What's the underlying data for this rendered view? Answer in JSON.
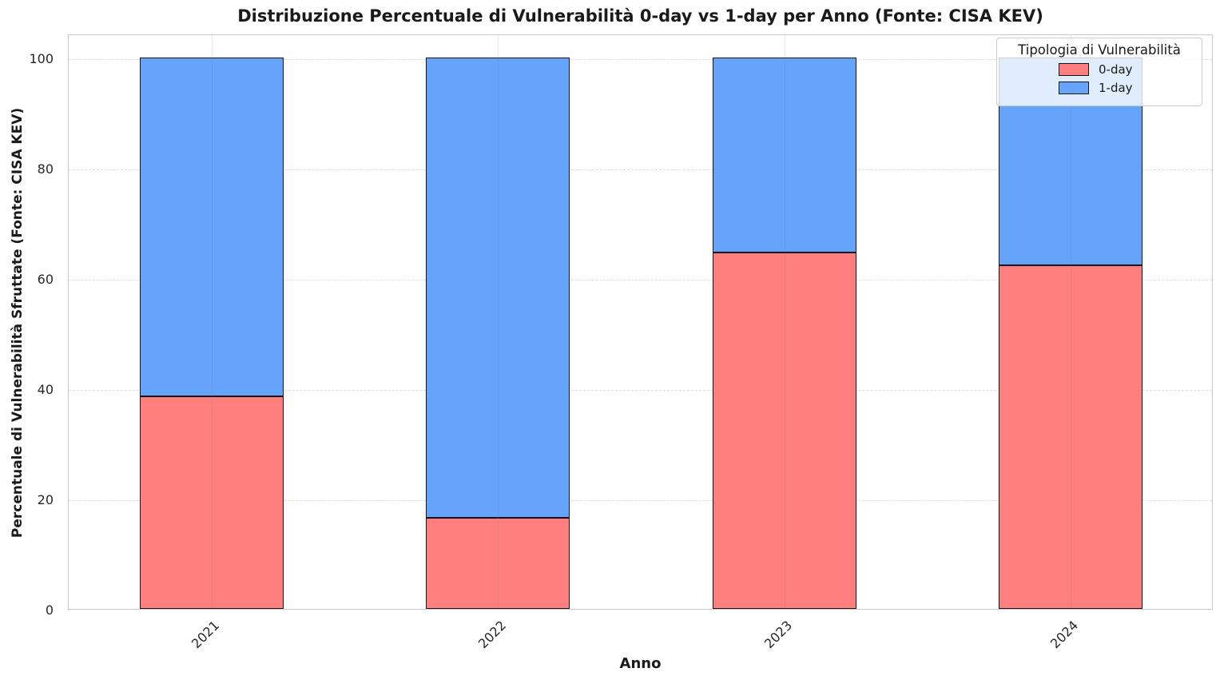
{
  "chart_data": {
    "type": "bar",
    "stacked": true,
    "percent_stacked": true,
    "title": "Distribuzione Percentuale di Vulnerabilità 0-day vs 1-day per Anno (Fonte: CISA KEV)",
    "xlabel": "Anno",
    "ylabel": "Percentuale di Vulnerabilità Sfruttate (Fonte: CISA KEV)",
    "categories": [
      "2021",
      "2022",
      "2023",
      "2024"
    ],
    "series": [
      {
        "name": "0-day",
        "color": "#ff7f7f",
        "values": [
          38.6,
          16.5,
          64.6,
          62.3
        ]
      },
      {
        "name": "1-day",
        "color": "#66a3fb",
        "values": [
          61.4,
          83.5,
          35.4,
          37.7
        ]
      }
    ],
    "ylim": [
      0,
      104.3
    ],
    "yticks": [
      0,
      20,
      40,
      60,
      80,
      100
    ],
    "grid": "horizontal dashed + faint vertical at category centers",
    "bar_edge_color": "#16161d",
    "legend": {
      "title": "Tipologia di Vulnerabilità",
      "position": "upper right",
      "entries": [
        "0-day",
        "1-day"
      ]
    }
  }
}
